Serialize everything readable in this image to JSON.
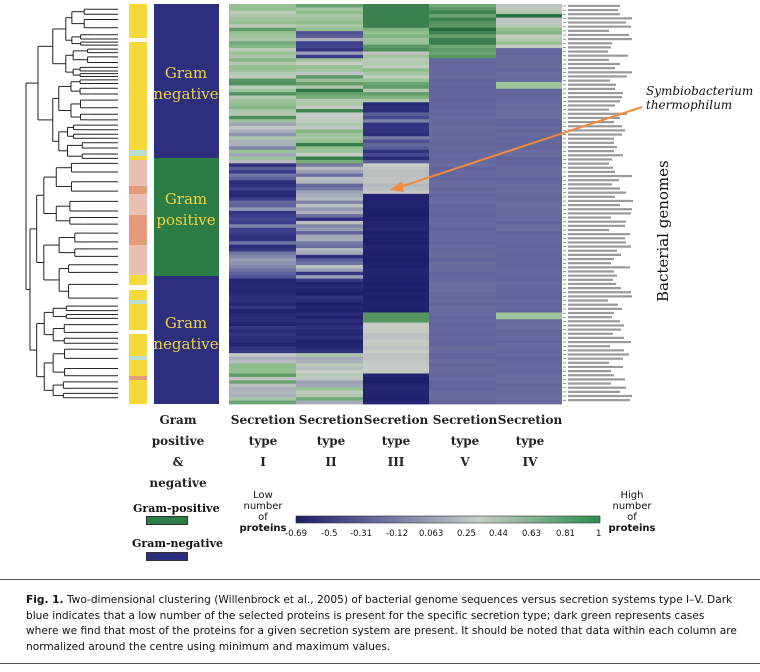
{
  "figure": {
    "gram_labels": [
      {
        "line1": "Gram",
        "line2": "negative"
      },
      {
        "line1": "Gram",
        "line2": "positive"
      },
      {
        "line1": "Gram",
        "line2": "negative"
      }
    ],
    "annotation": {
      "line1": "Symbiobacterium",
      "line2": "thermophilum"
    },
    "side_label": "Bacterial genomes",
    "column_headers": {
      "gram": [
        "Gram",
        "positive",
        "&",
        "negative"
      ],
      "secretion": [
        {
          "line1": "Secretion",
          "line2": "type",
          "line3": "I"
        },
        {
          "line1": "Secretion",
          "line2": "type",
          "line3": "II"
        },
        {
          "line1": "Secretion",
          "line2": "type",
          "line3": "III"
        },
        {
          "line1": "Secretion",
          "line2": "type",
          "line3": "V"
        },
        {
          "line1": "Secretion",
          "line2": "type",
          "line3": "IV"
        }
      ]
    },
    "legend": {
      "gram_positive_label": "Gram-positive",
      "gram_negative_label": "Gram-negative",
      "gram_positive_color": "#2c7d45",
      "gram_negative_color": "#2c2e7e"
    },
    "scale": {
      "low": {
        "line1": "Low",
        "line2": "number",
        "line3": "of",
        "line4": "proteins"
      },
      "high": {
        "line1": "High",
        "line2": "number",
        "line3": "of",
        "line4": "proteins"
      },
      "ticks": [
        "-0.69",
        "-0.5",
        "-0.31",
        "-0.12",
        "0.063",
        "0.25",
        "0.44",
        "0.63",
        "0.81",
        "1"
      ]
    },
    "colors": {
      "dark_blue": "#1c1d6b",
      "mid_blue": "#3a3c8a",
      "pale": "#c8cdc6",
      "light_green": "#8fbf8c",
      "dark_green": "#1f6b39",
      "annotation_arrow": "#f08a3c",
      "strip_yellow": "#f5d83a",
      "strip_salmon": "#e59a7a",
      "strip_pink": "#eac0b2",
      "strip_mint": "#b8e0c8"
    }
  },
  "caption": {
    "label": "Fig. 1.",
    "text": "Two-dimensional clustering (Willenbrock et al., 2005) of bacterial genome sequences versus secretion systems type I–V. Dark blue indicates that a low number of the selected proteins is present for the specific secretion type; dark green represents cases where we find that most of the proteins for a given secretion system are present. It should be noted that data within each column are normalized around the centre using minimum and maximum values."
  }
}
